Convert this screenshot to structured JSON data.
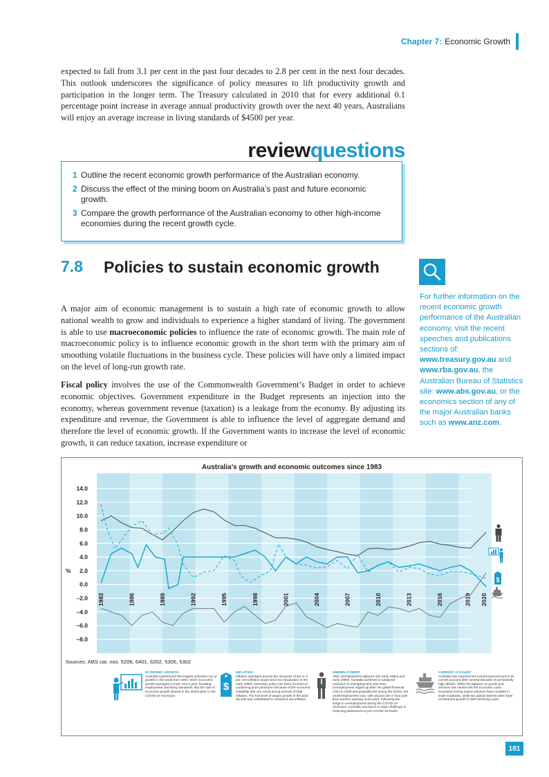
{
  "header": {
    "chapter_label": "Chapter 7:",
    "chapter_title": "Economic Growth"
  },
  "intro_paragraph": "expected to fall from 3.1 per cent in the past four decades to 2.8 per cent in the next four decades. This outlook underscores the significance of policy measures to lift productivity growth and participation in the longer term. The Treasury calculated in 2010 that for every additional 0.1 percentage point increase in average annual productivity growth over the next 40 years, Australians will enjoy an average increase in living standards of $4500 per year.",
  "review": {
    "title_a": "review",
    "title_b": "questions",
    "questions": [
      {
        "num": "1",
        "text": "Outline the recent economic growth performance of the Australian economy."
      },
      {
        "num": "2",
        "text": "Discuss the effect of the mining boom on Australia’s past and future economic growth."
      },
      {
        "num": "3",
        "text": "Compare the growth performance of the Australian economy to other high-income economies during the recent growth cycle."
      }
    ]
  },
  "section": {
    "number": "7.8",
    "title": "Policies to sustain economic growth",
    "p1_a": "A major aim of economic management is to sustain a high rate of economic growth to allow national wealth to grow and individuals to experience a higher standard of living. The government is able to use ",
    "p1_bold": "macroeconomic policies",
    "p1_b": " to influence the rate of economic growth. The main role of macroeconomic policy is to influence economic growth in the short term with the primary aim of smoothing volatile fluctuations in the business cycle. These policies will have only a limited impact on the level of long-run growth rate.",
    "p2_bold": "Fiscal policy",
    "p2_a": " involves the use of the Commonwealth Government’s Budget in order to achieve economic objectives. Government expenditure in the Budget represents an injection into the economy, whereas government revenue (taxation) is a leakage from the economy. By adjusting its expenditure and revenue, the Government is able to influence the level of aggregate demand and therefore the level of economic growth. If the Government wants to increase the level of economic growth, it can reduce taxation, increase expenditure or"
  },
  "sidebar": {
    "icon": "search-icon",
    "text_a": "For further information on the recent economic growth performance of the Australian economy, visit the recent speeches and publications sections of: ",
    "link1": "www.treasury.gov.au",
    "text_b": " and ",
    "link2": "www.rba.gov.au",
    "text_c": ", the Australian Bureau of Statistics site: ",
    "link3": "www.abs.gov.au",
    "text_d": ", or the economics section of any of the major Australian banks such as ",
    "link4": "www.anz.com",
    "text_e": "."
  },
  "figure": {
    "sources": "Sources: ABS cat. nos. 5206, 6401, 6202, 5306, 5302",
    "legend": [
      {
        "icon": "presenter-chart-icon",
        "heading": "ECONOMIC GROWTH",
        "text": "Australia experienced the longest unbroken run of growth in the world from 1991–2019. Economic growth averaged 2.9 per cent a year, boosting employment and living standards. But the rate of economic growth slowed in the 2010s prior to the COVID-19 recession."
      },
      {
        "icon": "dollar-tag-icon",
        "heading": "INFLATION",
        "text": "Inflation averaged around the mid-point of the 2–3 per cent inflation target since its introduction in the early 1990s. Monetary policy has been focused on containing price pressures because of the economic instability that can result during periods of high inflation. The low level of wages growth in the past decade has contributed to sustained low inflation."
      },
      {
        "icon": "person-icon",
        "heading": "UNEMPLOYMENT",
        "text": "After unemployment spiked in the early 1980s and early 1990s, Australia achieved a sustained reduction in unemployment over time. Unemployment edged up after the global financial crisis in 2008 and gradually fell during the 2010s, but underemployment rose, with around one in four part-time workers wanting more work. Following the surge in unemployment during the COVID-19 recession, Australia now faces a major challenge in reducing joblessness to pre-COVID-19 levels."
      },
      {
        "icon": "cargo-ship-icon",
        "heading": "CURRENT ACCOUNT",
        "text": "Australia has experienced a trend improvement in its current account after several decades of persistently high deficits. While the balance on goods and services has varied with the economic cycle, increased mining export volumes have resulted in trade surpluses, while low global interest rates have constrained growth in debt servicing costs."
      }
    ]
  },
  "chart_data": {
    "type": "line",
    "title": "Australia’s growth and economic outcomes since 1983",
    "ylabel": "%",
    "ylim": [
      -8,
      14
    ],
    "yticks": [
      "14.0",
      "12.0",
      "10.0",
      "8.0",
      "6.0",
      "4.0",
      "2.0",
      "0.0",
      "–2.0",
      "–4.0",
      "–6.0",
      "–8.0"
    ],
    "xticks": [
      "1983",
      "1986",
      "1989",
      "1992",
      "1995",
      "1998",
      "2001",
      "2004",
      "2007",
      "2010",
      "2013",
      "2016",
      "2019",
      "2020"
    ],
    "series": [
      {
        "key": "unemployment",
        "style": "solid-dark",
        "icon": "person-icon",
        "points": [
          [
            1983,
            9.3
          ],
          [
            1984,
            10.0
          ],
          [
            1985,
            9.0
          ],
          [
            1986,
            8.3
          ],
          [
            1987,
            8.2
          ],
          [
            1988,
            7.3
          ],
          [
            1989,
            6.5
          ],
          [
            1990,
            7.8
          ],
          [
            1991,
            9.3
          ],
          [
            1992,
            10.5
          ],
          [
            1993,
            11.0
          ],
          [
            1994,
            10.6
          ],
          [
            1995,
            9.4
          ],
          [
            1996,
            8.6
          ],
          [
            1997,
            8.6
          ],
          [
            1998,
            8.2
          ],
          [
            1999,
            7.5
          ],
          [
            2000,
            6.8
          ],
          [
            2001,
            6.8
          ],
          [
            2002,
            6.6
          ],
          [
            2003,
            6.2
          ],
          [
            2004,
            5.5
          ],
          [
            2005,
            5.1
          ],
          [
            2006,
            4.8
          ],
          [
            2007,
            4.4
          ],
          [
            2008,
            4.2
          ],
          [
            2009,
            5.2
          ],
          [
            2010,
            5.3
          ],
          [
            2011,
            5.1
          ],
          [
            2012,
            5.2
          ],
          [
            2013,
            5.6
          ],
          [
            2014,
            6.1
          ],
          [
            2015,
            6.3
          ],
          [
            2016,
            5.9
          ],
          [
            2017,
            5.7
          ],
          [
            2018,
            5.4
          ],
          [
            2019,
            5.3
          ],
          [
            2020.5,
            7.6
          ]
        ]
      },
      {
        "key": "inflation",
        "style": "dashed-light",
        "icon": "dollar-tag-icon",
        "points": [
          [
            1983,
            11.7
          ],
          [
            1983.6,
            8.0
          ],
          [
            1984.4,
            5.2
          ],
          [
            1985,
            6.5
          ],
          [
            1986,
            8.5
          ],
          [
            1987,
            9.3
          ],
          [
            1988,
            7.3
          ],
          [
            1989,
            7.5
          ],
          [
            1989.6,
            8.2
          ],
          [
            1990.4,
            6.1
          ],
          [
            1991,
            3.0
          ],
          [
            1992,
            1.0
          ],
          [
            1993,
            1.8
          ],
          [
            1994,
            2.0
          ],
          [
            1995,
            4.2
          ],
          [
            1996,
            3.5
          ],
          [
            1996.6,
            1.3
          ],
          [
            1997.5,
            0.3
          ],
          [
            1998.5,
            1.2
          ],
          [
            1999.5,
            2.0
          ],
          [
            2000.3,
            5.9
          ],
          [
            2001,
            4.1
          ],
          [
            2002,
            3.0
          ],
          [
            2003,
            2.8
          ],
          [
            2004,
            2.4
          ],
          [
            2005,
            2.6
          ],
          [
            2006,
            3.5
          ],
          [
            2007,
            2.3
          ],
          [
            2008,
            4.4
          ],
          [
            2009,
            1.8
          ],
          [
            2010,
            2.9
          ],
          [
            2011,
            3.3
          ],
          [
            2012,
            1.8
          ],
          [
            2013,
            2.5
          ],
          [
            2014,
            2.3
          ],
          [
            2015,
            1.5
          ],
          [
            2016,
            1.3
          ],
          [
            2017,
            1.9
          ],
          [
            2018,
            1.9
          ],
          [
            2019,
            1.6
          ],
          [
            2020.5,
            0.9
          ]
        ]
      },
      {
        "key": "economic_growth",
        "style": "solid-cyan",
        "icon": "presenter-chart-icon",
        "points": [
          [
            1983,
            0.2
          ],
          [
            1984,
            4.5
          ],
          [
            1985,
            5.3
          ],
          [
            1986,
            4.5
          ],
          [
            1986.6,
            2.5
          ],
          [
            1987.4,
            5.8
          ],
          [
            1988.3,
            4.0
          ],
          [
            1989.2,
            3.7
          ],
          [
            1989.6,
            -0.6
          ],
          [
            1990.5,
            0.0
          ],
          [
            1991,
            4.0
          ],
          [
            1992,
            4.0
          ],
          [
            1993,
            4.0
          ],
          [
            1994,
            4.0
          ],
          [
            1995,
            4.0
          ],
          [
            1996,
            4.0
          ],
          [
            1997,
            4.5
          ],
          [
            1998,
            5.0
          ],
          [
            1999,
            4.0
          ],
          [
            2000,
            2.0
          ],
          [
            2001,
            4.0
          ],
          [
            2002,
            3.0
          ],
          [
            2003,
            4.0
          ],
          [
            2004,
            3.3
          ],
          [
            2005,
            3.0
          ],
          [
            2006,
            4.0
          ],
          [
            2007,
            4.0
          ],
          [
            2008,
            1.7
          ],
          [
            2009,
            2.0
          ],
          [
            2010,
            2.8
          ],
          [
            2011,
            3.3
          ],
          [
            2012,
            2.5
          ],
          [
            2013,
            2.7
          ],
          [
            2014,
            3.0
          ],
          [
            2015,
            2.5
          ],
          [
            2016,
            2.0
          ],
          [
            2017,
            2.5
          ],
          [
            2018,
            2.8
          ],
          [
            2019,
            2.0
          ],
          [
            2020.5,
            -0.3
          ]
        ]
      },
      {
        "key": "current_account",
        "style": "solid-grey",
        "icon": "cargo-ship-icon",
        "points": [
          [
            1983,
            -3.5
          ],
          [
            1984,
            -4.0
          ],
          [
            1985,
            -4.5
          ],
          [
            1986,
            -6.0
          ],
          [
            1987,
            -4.5
          ],
          [
            1988,
            -4.0
          ],
          [
            1989,
            -5.5
          ],
          [
            1990,
            -6.0
          ],
          [
            1991,
            -4.2
          ],
          [
            1992,
            -3.5
          ],
          [
            1993,
            -3.5
          ],
          [
            1994,
            -3.5
          ],
          [
            1995,
            -5.5
          ],
          [
            1996,
            -4.0
          ],
          [
            1997,
            -3.2
          ],
          [
            1998,
            -4.5
          ],
          [
            1999,
            -5.7
          ],
          [
            2000,
            -5.2
          ],
          [
            2001,
            -3.2
          ],
          [
            2002,
            -2.7
          ],
          [
            2003,
            -4.7
          ],
          [
            2004,
            -5.5
          ],
          [
            2005,
            -6.3
          ],
          [
            2006,
            -5.7
          ],
          [
            2007,
            -6.0
          ],
          [
            2008,
            -6.2
          ],
          [
            2009,
            -4.0
          ],
          [
            2010,
            -4.5
          ],
          [
            2011,
            -3.3
          ],
          [
            2012,
            -3.5
          ],
          [
            2013,
            -4.0
          ],
          [
            2014,
            -3.5
          ],
          [
            2015,
            -4.5
          ],
          [
            2016,
            -4.8
          ],
          [
            2017,
            -2.8
          ],
          [
            2018,
            -2.0
          ],
          [
            2019,
            -1.5
          ],
          [
            2020.5,
            1.7
          ]
        ]
      }
    ]
  },
  "colors": {
    "accent": "#1a9ccc",
    "plot_bg": "#bfe4f0",
    "plot_bg_alt": "#d6eff7"
  },
  "page_number": "181"
}
